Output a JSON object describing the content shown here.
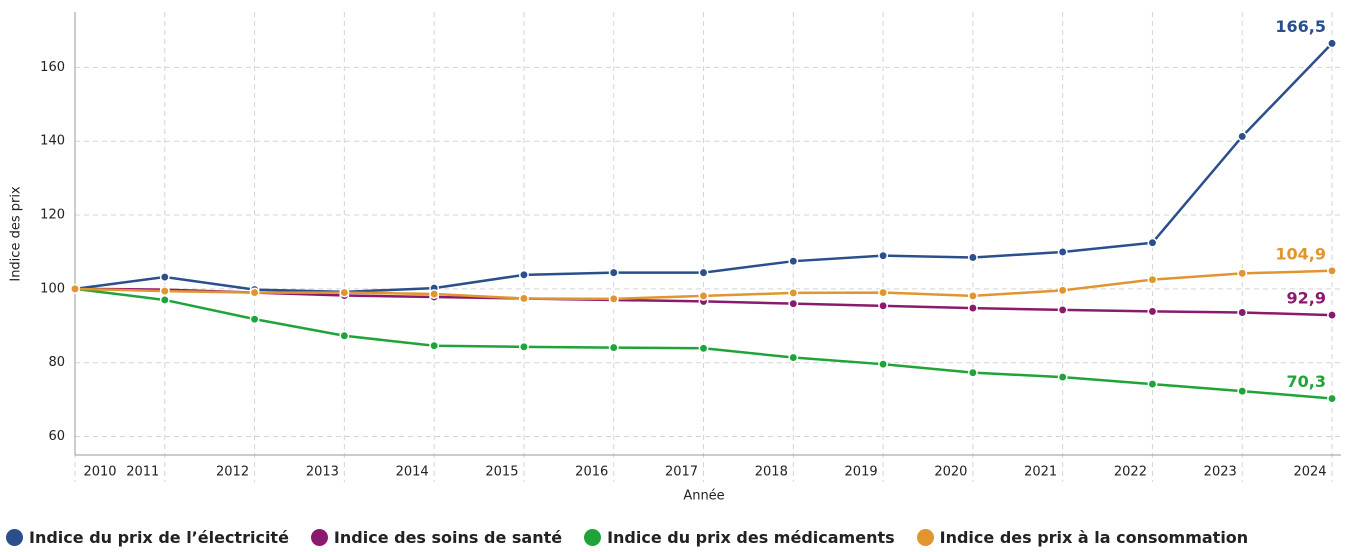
{
  "chart_data": {
    "type": "line",
    "x": [
      2010,
      2011,
      2012,
      2013,
      2014,
      2015,
      2016,
      2017,
      2018,
      2019,
      2020,
      2021,
      2022,
      2023,
      2024
    ],
    "xlim": [
      2010,
      2024.1
    ],
    "xticks": [
      2010,
      2011,
      2012,
      2013,
      2014,
      2015,
      2016,
      2017,
      2018,
      2019,
      2020,
      2021,
      2022,
      2023,
      2024
    ],
    "ylim": [
      55,
      175
    ],
    "yticks": [
      60,
      80,
      100,
      120,
      140,
      160
    ],
    "grid": true,
    "xlabel": "Année",
    "ylabel": "Indice des prix",
    "series": [
      {
        "name": "Indice du prix de l’électricité",
        "color": "#2b4f8c",
        "values": [
          100,
          103.2,
          99.8,
          99.2,
          100.2,
          103.8,
          104.4,
          104.4,
          107.5,
          109,
          108.5,
          110,
          112.5,
          141.3,
          166.5
        ],
        "value_labels": [
          null,
          null,
          null,
          null,
          null,
          null,
          null,
          null,
          null,
          null,
          null,
          null,
          null,
          null,
          "166,5"
        ]
      },
      {
        "name": "Indice des soins de santé",
        "color": "#8a1a6e",
        "values": [
          100,
          99.8,
          99,
          98.2,
          97.8,
          97.4,
          97,
          96.6,
          96,
          95.4,
          94.8,
          94.3,
          93.9,
          93.6,
          92.9
        ],
        "value_labels": [
          null,
          null,
          null,
          null,
          null,
          null,
          null,
          null,
          null,
          null,
          null,
          null,
          null,
          null,
          "92,9"
        ]
      },
      {
        "name": "Indice du prix des médicaments",
        "color": "#1fa43a",
        "values": [
          100,
          97,
          91.8,
          87.3,
          84.6,
          84.3,
          84.1,
          83.9,
          81.4,
          79.6,
          77.3,
          76.1,
          74.2,
          72.3,
          70.3
        ],
        "value_labels": [
          null,
          null,
          null,
          null,
          null,
          null,
          null,
          null,
          null,
          null,
          null,
          null,
          null,
          null,
          "70,3"
        ]
      },
      {
        "name": "Indice des prix à la consommation",
        "color": "#e0952f",
        "values": [
          100,
          99.4,
          99,
          99,
          98.6,
          97.4,
          97.3,
          98.1,
          98.9,
          99,
          98.1,
          99.6,
          102.5,
          104.2,
          104.9
        ],
        "value_labels": [
          null,
          null,
          null,
          null,
          null,
          null,
          null,
          null,
          null,
          null,
          null,
          null,
          null,
          null,
          "104,9"
        ]
      }
    ]
  }
}
